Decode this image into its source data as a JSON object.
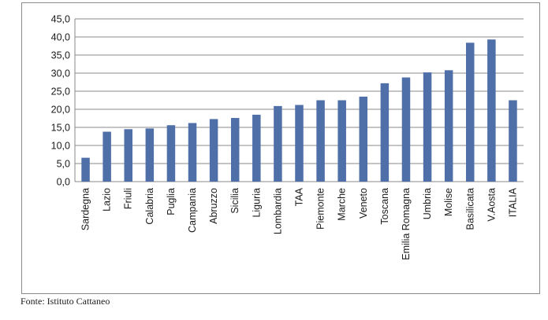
{
  "chart_data": {
    "type": "bar",
    "categories": [
      "Sardegna",
      "Lazio",
      "Friuli",
      "Calabria",
      "Puglia",
      "Campania",
      "Abruzzo",
      "Sicilia",
      "Liguria",
      "Lombardia",
      "TAA",
      "Piemonte",
      "Marche",
      "Veneto",
      "Toscana",
      "Emilia Romagna",
      "Umbria",
      "Molise",
      "Basilicata",
      "V.Aosta",
      "ITALIA"
    ],
    "values": [
      6.6,
      13.8,
      14.5,
      14.7,
      15.6,
      16.2,
      17.3,
      17.6,
      18.5,
      20.9,
      21.2,
      22.5,
      22.5,
      23.5,
      27.2,
      28.8,
      30.2,
      30.8,
      38.4,
      39.3,
      22.5
    ],
    "yticks": [
      "0,0",
      "5,0",
      "10,0",
      "15,0",
      "20,0",
      "25,0",
      "30,0",
      "35,0",
      "40,0",
      "45,0"
    ],
    "ylim": [
      0,
      45
    ],
    "grid": true,
    "bar_color": "#4f6fa8",
    "grid_color": "#8a8a8a"
  },
  "source_note": "Fonte: Istituto Cattaneo"
}
